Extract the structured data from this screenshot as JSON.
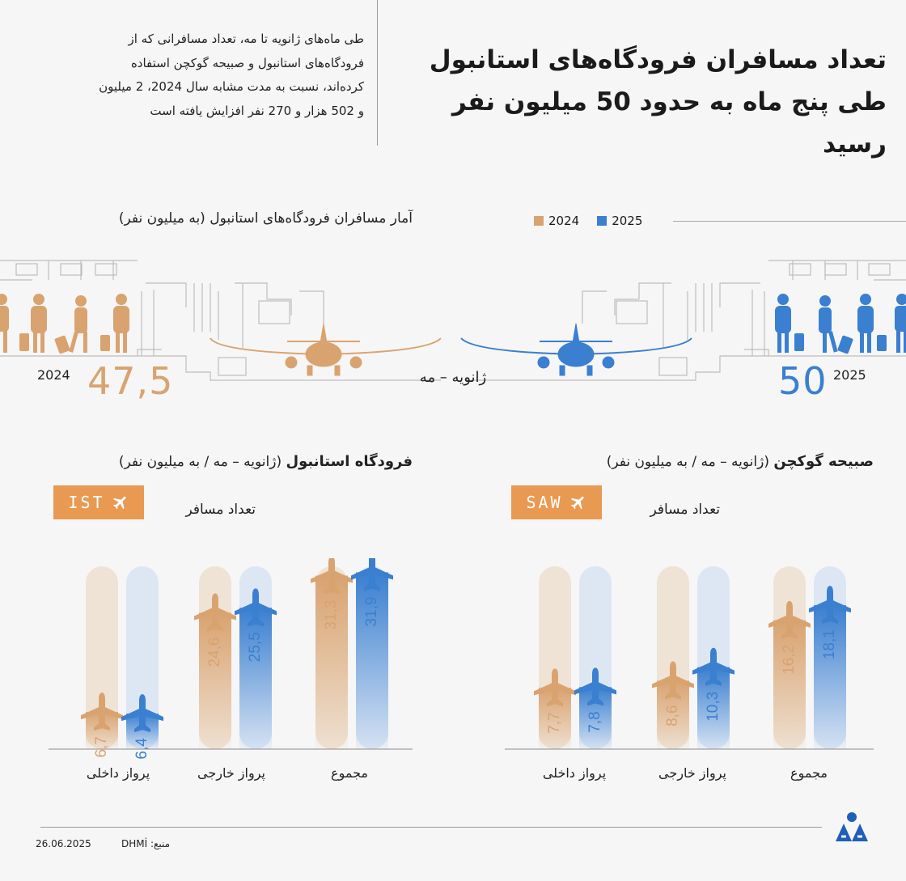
{
  "header": {
    "title_line1": "تعداد مسافران فرودگاه‌های استانبول",
    "title_line2": "طی پنج ماه  به حدود 50 میلیون نفر رسید",
    "intro_lines": [
      "طی ماه‌های ژانویه تا مه، تعداد مسافرانی که از",
      "فرودگاه‌های استانبول و صبیحه گوکچن استفاده",
      "کرده‌اند، نسبت به مدت مشابه سال 2024،  2 میلیون",
      "و 502 هزار و 270 نفر افزایش یافته است"
    ]
  },
  "legend": {
    "y2024": "2024",
    "y2025": "2025"
  },
  "colors": {
    "y2024": "#d9a370",
    "y2025": "#3a7fd0",
    "accent_box": "#e89a52"
  },
  "overview": {
    "title": "آمار مسافران فرودگاه‌های استانبول (به میلیون نفر)",
    "period": "ژانویه – مه",
    "left_year": "2024",
    "left_value": "47,5",
    "right_year": "2025",
    "right_value": "50"
  },
  "ist": {
    "title_bold": "فرودگاه استانبول",
    "title_rest": " (ژانویه – مه / به میلیون نفر)",
    "code": "IST",
    "subtitle": "تعداد مسافر"
  },
  "saw": {
    "title_bold": "صبیحه گوکچن",
    "title_rest": " (ژانویه – مه / به میلیون نفر)",
    "code": "SAW",
    "subtitle": "تعداد مسافر"
  },
  "chart_data": [
    {
      "type": "bar",
      "title": "فرودگاه استانبول (ژانویه – مه / به میلیون نفر)",
      "categories": [
        "پرواز داخلی",
        "پرواز خارجی",
        "مجموع"
      ],
      "series": [
        {
          "name": "2024",
          "values": [
            6.7,
            24.6,
            31.3
          ],
          "labels": [
            "6,7",
            "24,6",
            "31,3"
          ]
        },
        {
          "name": "2025",
          "values": [
            6.4,
            25.5,
            31.9
          ],
          "labels": [
            "6,4",
            "25,5",
            "31,9"
          ]
        }
      ],
      "ylim": [
        0,
        33
      ]
    },
    {
      "type": "bar",
      "title": "صبیحه گوکچن (ژانویه – مه / به میلیون نفر)",
      "categories": [
        "پرواز داخلی",
        "پرواز خارجی",
        "مجموع"
      ],
      "series": [
        {
          "name": "2024",
          "values": [
            7.7,
            8.6,
            16.2
          ],
          "labels": [
            "7,7",
            "8,6",
            "16,2"
          ]
        },
        {
          "name": "2025",
          "values": [
            7.8,
            10.3,
            18.1
          ],
          "labels": [
            "7,8",
            "10,3",
            "18,1"
          ]
        }
      ],
      "ylim": [
        0,
        23
      ]
    }
  ],
  "footer": {
    "date": "26.06.2025",
    "source": "منبع: DHMİ",
    "logo": "AA"
  }
}
